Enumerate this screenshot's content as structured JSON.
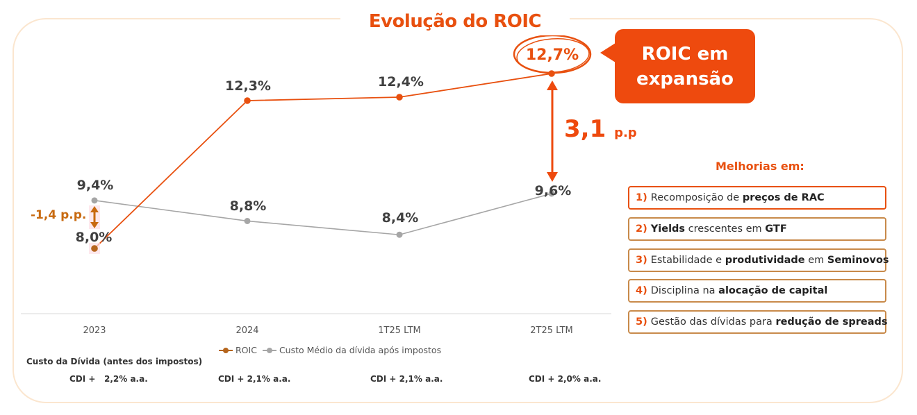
{
  "title": "Evolução do ROIC",
  "callout": {
    "line1": "ROIC em",
    "line2": "expansão"
  },
  "spread_annotation": {
    "value": "3,1",
    "unit": "p.p"
  },
  "negative_annotation": "-1,4 p.p.",
  "highlight_value": "12,7%",
  "improvements": {
    "title": "Melhorias em:",
    "items": [
      {
        "num": "1)",
        "parts": [
          {
            "t": "Recomposição de ",
            "b": false
          },
          {
            "t": "preços de RAC",
            "b": true
          }
        ]
      },
      {
        "num": "2)",
        "parts": [
          {
            "t": "Yields",
            "b": true
          },
          {
            "t": " crescentes em ",
            "b": false
          },
          {
            "t": "GTF",
            "b": true
          }
        ]
      },
      {
        "num": "3)",
        "parts": [
          {
            "t": "Estabilidade e ",
            "b": false
          },
          {
            "t": "produtividade",
            "b": true
          },
          {
            "t": " em ",
            "b": false
          },
          {
            "t": "Seminovos",
            "b": true
          }
        ]
      },
      {
        "num": "4)",
        "parts": [
          {
            "t": "Disciplina na ",
            "b": false
          },
          {
            "t": "alocação de capital",
            "b": true
          }
        ]
      },
      {
        "num": "5)",
        "parts": [
          {
            "t": "Gestão das dívidas para ",
            "b": false
          },
          {
            "t": "redução de spreads",
            "b": true
          }
        ]
      }
    ]
  },
  "debt_cost": {
    "title": "Custo da Dívida (antes dos impostos)",
    "values": [
      "CDI +   2,2% a.a.",
      "CDI + 2,1% a.a.",
      "CDI + 2,1% a.a.",
      "CDI + 2,0% a.a."
    ]
  },
  "colors": {
    "roic": "#e8500f",
    "cost": "#a6a6a6",
    "accent": "#ee4a0e",
    "brown": "#c86a10"
  },
  "chart_data": {
    "type": "line",
    "categories": [
      "2023",
      "2024",
      "1T25 LTM",
      "2T25 LTM"
    ],
    "series": [
      {
        "name": "ROIC",
        "values": [
          8.0,
          12.3,
          12.4,
          12.7
        ],
        "labels": [
          "8,0%",
          "12,3%",
          "12,4%",
          "12,7%"
        ]
      },
      {
        "name": "Custo Médio da dívida após impostos",
        "values": [
          9.4,
          8.8,
          8.4,
          9.6
        ],
        "labels": [
          "9,4%",
          "8,8%",
          "8,4%",
          "9,6%"
        ]
      }
    ],
    "title": "Evolução do ROIC",
    "legend": "bottom",
    "grid": false
  }
}
